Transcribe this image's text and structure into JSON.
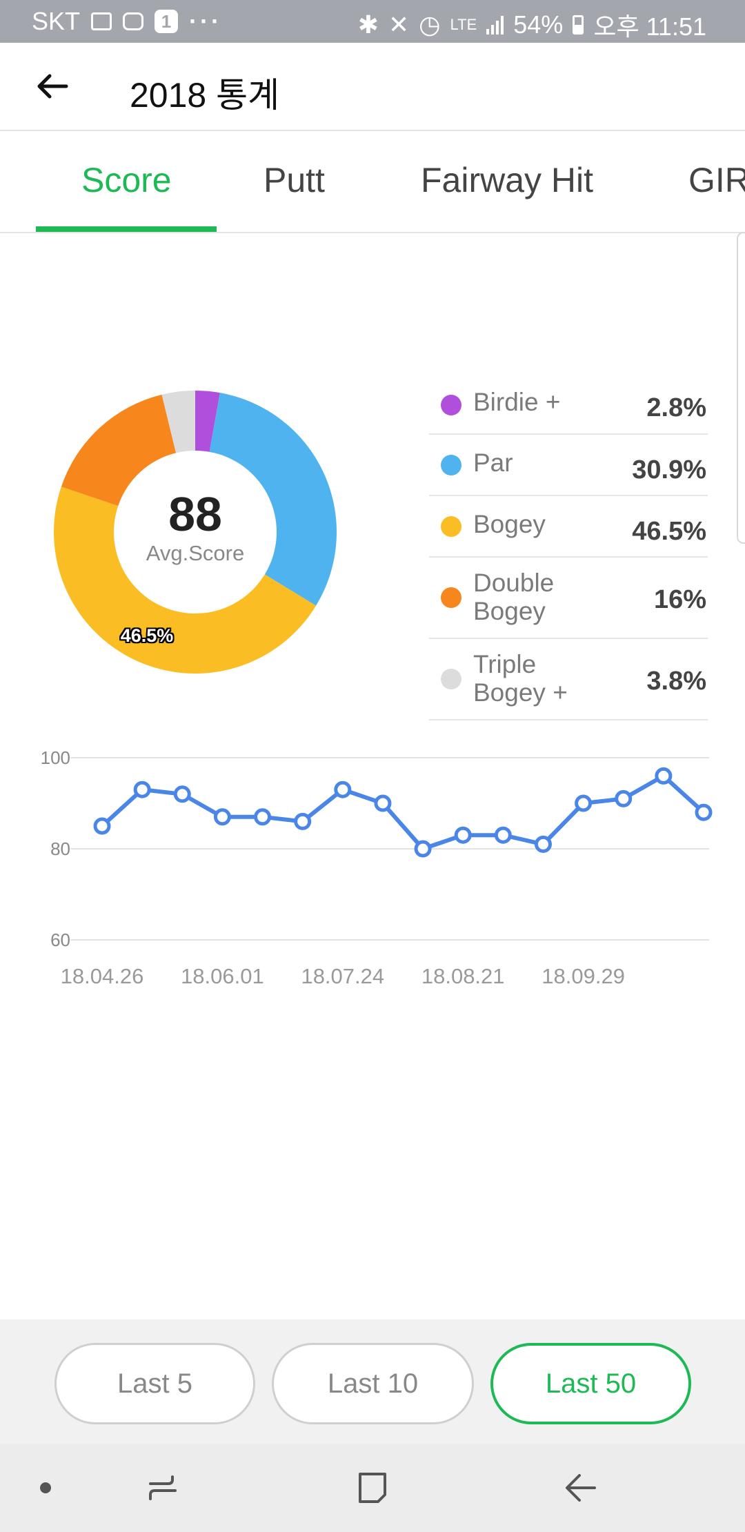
{
  "status_bar": {
    "carrier": "SKT",
    "badge": "1",
    "more": "···",
    "lte": "LTE",
    "battery": "54%",
    "time": "오후 11:51"
  },
  "header": {
    "title": "2018 통계",
    "back_icon": "arrow-left-icon"
  },
  "tabs": [
    {
      "label": "Score",
      "active": true
    },
    {
      "label": "Putt",
      "active": false
    },
    {
      "label": "Fairway Hit",
      "active": false
    },
    {
      "label": "GIR",
      "active": false
    }
  ],
  "donut": {
    "center_value": "88",
    "center_label": "Avg.Score",
    "slice_label": "46.5%",
    "colors": [
      "#b04fdc",
      "#4fb3f0",
      "#fabd23",
      "#f7861c",
      "#dcdcdc"
    ]
  },
  "legend": [
    {
      "name": "Birdie +",
      "value": "2.8%",
      "color": "#b04fdc"
    },
    {
      "name": "Par",
      "value": "30.9%",
      "color": "#4fb3f0"
    },
    {
      "name": "Bogey",
      "value": "46.5%",
      "color": "#fabd23"
    },
    {
      "name": "Double\nBogey",
      "value": "16%",
      "color": "#f7861c"
    },
    {
      "name": "Triple\nBogey +",
      "value": "3.8%",
      "color": "#dcdcdc"
    }
  ],
  "chart_data": [
    {
      "type": "pie",
      "categories": [
        "Birdie +",
        "Par",
        "Bogey",
        "Double Bogey",
        "Triple Bogey +"
      ],
      "values": [
        2.8,
        30.9,
        46.5,
        16,
        3.8
      ],
      "colors": [
        "#b04fdc",
        "#4fb3f0",
        "#fabd23",
        "#f7861c",
        "#dcdcdc"
      ],
      "donut": true
    },
    {
      "type": "line",
      "values": [
        85,
        93,
        92,
        87,
        87,
        86,
        93,
        90,
        80,
        83,
        83,
        81,
        90,
        91,
        96,
        88
      ],
      "x_ticks": [
        "18.04.26",
        "18.06.01",
        "18.07.24",
        "18.08.21",
        "18.09.29"
      ],
      "y_ticks": [
        "60",
        "80",
        "100"
      ],
      "ylim": [
        60,
        100
      ],
      "grid": true,
      "color": "#4a86e8"
    }
  ],
  "filters": [
    {
      "label": "Last 5",
      "active": false
    },
    {
      "label": "Last 10",
      "active": false
    },
    {
      "label": "Last 50",
      "active": true
    }
  ],
  "nav_bar": {
    "icons": [
      "dot-icon",
      "recent-apps-icon",
      "home-icon",
      "back-icon"
    ]
  }
}
